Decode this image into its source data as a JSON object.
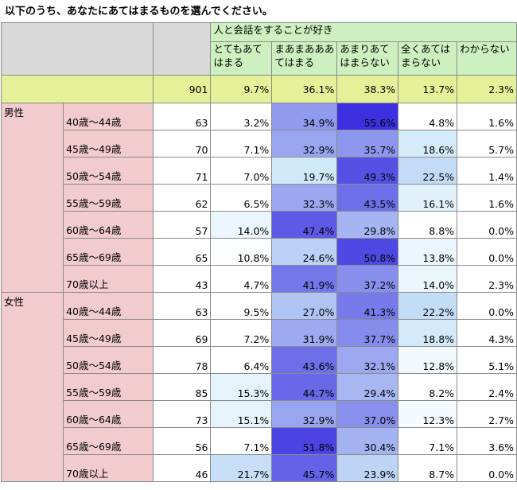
{
  "question": "以下のうち、あなたにあてはまるものを選んでください。",
  "header": {
    "statement": "人と会話をすることが好き",
    "options": [
      [
        "とてもあて",
        "はまる"
      ],
      [
        "まあまあああ",
        "てはまる"
      ],
      [
        "あまりあて",
        "はまらない"
      ],
      [
        "全くあては",
        "まらない"
      ],
      [
        "",
        "わからない"
      ]
    ]
  },
  "total": {
    "n": "901",
    "values": [
      "9.7%",
      "36.1%",
      "38.3%",
      "13.7%",
      "2.3%"
    ]
  },
  "groups": [
    {
      "label": "男性",
      "rows": [
        {
          "age": "40歳～44歳",
          "n": "63",
          "values": [
            "3.2%",
            "34.9%",
            "55.6%",
            "4.8%",
            "1.6%"
          ]
        },
        {
          "age": "45歳～49歳",
          "n": "70",
          "values": [
            "7.1%",
            "32.9%",
            "35.7%",
            "18.6%",
            "5.7%"
          ]
        },
        {
          "age": "50歳～54歳",
          "n": "71",
          "values": [
            "7.0%",
            "19.7%",
            "49.3%",
            "22.5%",
            "1.4%"
          ]
        },
        {
          "age": "55歳～59歳",
          "n": "62",
          "values": [
            "6.5%",
            "32.3%",
            "43.5%",
            "16.1%",
            "1.6%"
          ]
        },
        {
          "age": "60歳～64歳",
          "n": "57",
          "values": [
            "14.0%",
            "47.4%",
            "29.8%",
            "8.8%",
            "0.0%"
          ]
        },
        {
          "age": "65歳～69歳",
          "n": "65",
          "values": [
            "10.8%",
            "24.6%",
            "50.8%",
            "13.8%",
            "0.0%"
          ]
        },
        {
          "age": "70歳以上",
          "n": "43",
          "values": [
            "4.7%",
            "41.9%",
            "37.2%",
            "14.0%",
            "2.3%"
          ]
        }
      ]
    },
    {
      "label": "女性",
      "rows": [
        {
          "age": "40歳～44歳",
          "n": "63",
          "values": [
            "9.5%",
            "27.0%",
            "41.3%",
            "22.2%",
            "0.0%"
          ]
        },
        {
          "age": "45歳～49歳",
          "n": "69",
          "values": [
            "7.2%",
            "31.9%",
            "37.7%",
            "18.8%",
            "4.3%"
          ]
        },
        {
          "age": "50歳～54歳",
          "n": "78",
          "values": [
            "6.4%",
            "43.6%",
            "32.1%",
            "12.8%",
            "5.1%"
          ]
        },
        {
          "age": "55歳～59歳",
          "n": "85",
          "values": [
            "15.3%",
            "44.7%",
            "29.4%",
            "8.2%",
            "2.4%"
          ]
        },
        {
          "age": "60歳～64歳",
          "n": "73",
          "values": [
            "15.1%",
            "32.9%",
            "37.0%",
            "12.3%",
            "2.7%"
          ]
        },
        {
          "age": "65歳～69歳",
          "n": "56",
          "values": [
            "7.1%",
            "51.8%",
            "30.4%",
            "7.1%",
            "3.6%"
          ]
        },
        {
          "age": "70歳以上",
          "n": "46",
          "values": [
            "21.7%",
            "45.7%",
            "23.9%",
            "8.7%",
            "0.0%"
          ]
        }
      ]
    }
  ],
  "colors": {
    "header_green": "#ccf0c0",
    "header_grey": "#d9d9d9",
    "total_yellow": "#e4f199",
    "row_label_pink": "#f2cbcf",
    "heat_low": "#ffffff",
    "heat_mid": "#cde8f8",
    "heat_high": "#3a2ee0"
  }
}
